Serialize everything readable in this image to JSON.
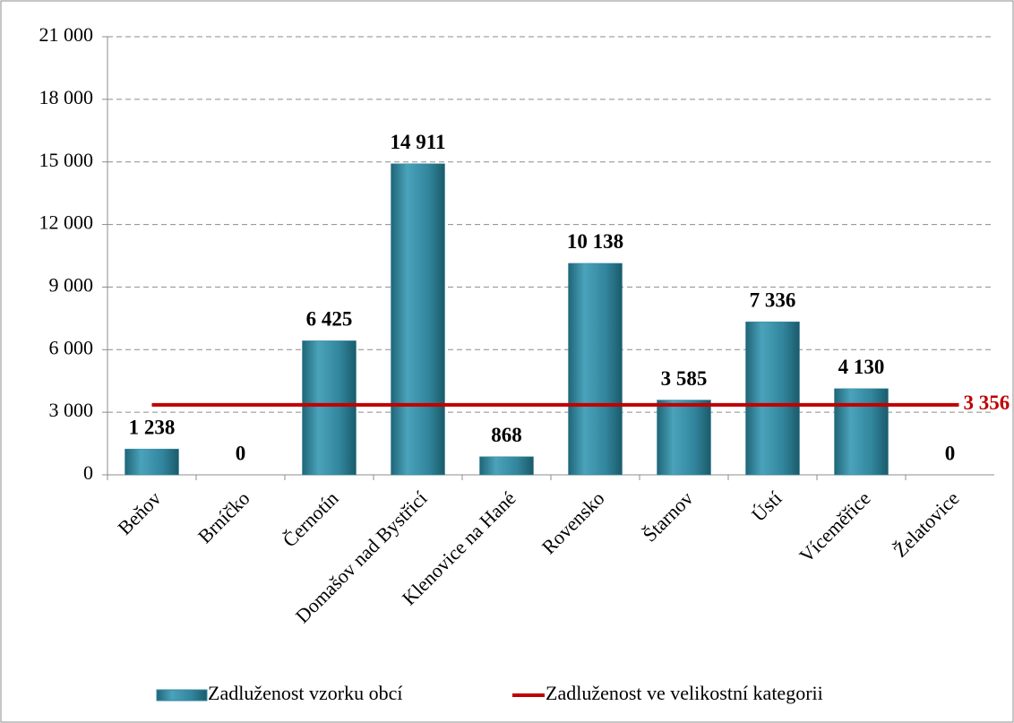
{
  "chart_data": {
    "type": "bar",
    "categories": [
      "Beňov",
      "Brníčko",
      "Černotín",
      "Domašov nad Bystřicí",
      "Klenovice na Hané",
      "Rovensko",
      "Štarnov",
      "Ústí",
      "Víceměřice",
      "Želatovice"
    ],
    "series": [
      {
        "name": "Zadluženost vzorku obcí",
        "color": "#31859c",
        "values": [
          1238,
          0,
          6425,
          14911,
          868,
          10138,
          3585,
          7336,
          4130,
          0
        ],
        "value_labels": [
          "1 238",
          "0",
          "6 425",
          "14 911",
          "868",
          "10 138",
          "3 585",
          "7 336",
          "4 130",
          "0"
        ]
      }
    ],
    "reference_line": {
      "name": "Zadluženost ve velikostní kategorii",
      "value": 3356,
      "label": "3 356",
      "color": "#c00000"
    },
    "ylim": [
      0,
      21000
    ],
    "yticks": [
      0,
      {
        "value": 3000,
        "label": "3 000"
      },
      {
        "value": 6000,
        "label": "6 000"
      },
      {
        "value": 9000,
        "label": "9 000"
      },
      {
        "value": 12000,
        "label": "12 000"
      },
      {
        "value": 15000,
        "label": "15 000"
      },
      {
        "value": 18000,
        "label": "18 000"
      },
      {
        "value": 21000,
        "label": "21 000"
      }
    ],
    "grid": true
  }
}
